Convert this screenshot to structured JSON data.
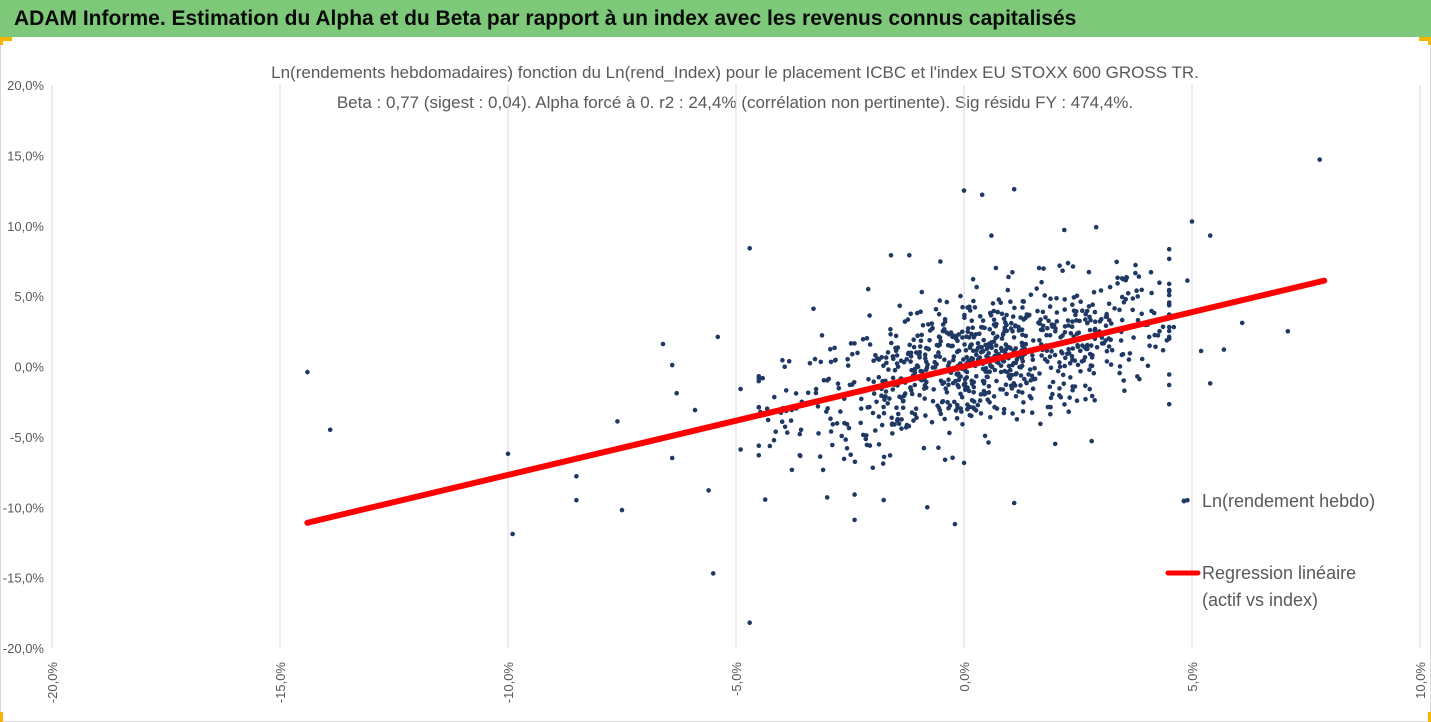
{
  "header": {
    "title": "ADAM Informe. Estimation du Alpha et du Beta par rapport à un index avec les revenus connus capitalisés"
  },
  "chart_data": {
    "type": "scatter",
    "title": "Ln(rendements hebdomadaires) fonction du Ln(rend_Index) pour le placement ICBC et l'index EU STOXX 600 GROSS TR.",
    "subtitle": "Beta : 0,77 (sigest : 0,04).  Alpha forcé à 0. r2 : 24,4% (corrélation non pertinente). Sig résidu FY : 474,4%.",
    "xlim": [
      -0.2,
      0.1
    ],
    "ylim": [
      -0.2,
      0.2
    ],
    "x_ticks": [
      "-20,0%",
      "-15,0%",
      "-10,0%",
      "-5,0%",
      "0,0%",
      "5,0%",
      "10,0%"
    ],
    "y_ticks": [
      "20,0%",
      "15,0%",
      "10,0%",
      "5,0%",
      "0,0%",
      "-5,0%",
      "-10,0%",
      "-15,0%",
      "-20,0%"
    ],
    "grid": "vertical",
    "legend_position": "right",
    "series": [
      {
        "name": "Ln(rendement hebdo)",
        "kind": "scatter",
        "color": "#1f3864",
        "cluster": {
          "count": 880,
          "x_center": 0.004,
          "x_spread": 0.021,
          "slope": 0.77,
          "resid_spread": 0.024
        },
        "points": [
          [
            -0.144,
            -0.004
          ],
          [
            -0.139,
            -0.045
          ],
          [
            -0.1,
            -0.062
          ],
          [
            -0.099,
            -0.119
          ],
          [
            -0.085,
            -0.078
          ],
          [
            -0.085,
            -0.095
          ],
          [
            -0.076,
            -0.039
          ],
          [
            -0.075,
            -0.102
          ],
          [
            -0.066,
            0.016
          ],
          [
            -0.064,
            0.001
          ],
          [
            -0.063,
            -0.019
          ],
          [
            -0.064,
            -0.065
          ],
          [
            -0.059,
            -0.031
          ],
          [
            -0.056,
            -0.088
          ],
          [
            -0.055,
            -0.147
          ],
          [
            -0.054,
            0.021
          ],
          [
            -0.049,
            -0.059
          ],
          [
            -0.049,
            -0.016
          ],
          [
            -0.047,
            0.084
          ],
          [
            -0.047,
            -0.182
          ],
          [
            -0.036,
            -0.048
          ],
          [
            -0.039,
            -0.017
          ],
          [
            -0.033,
            0.041
          ],
          [
            -0.03,
            -0.093
          ],
          [
            -0.024,
            -0.091
          ],
          [
            -0.024,
            -0.109
          ],
          [
            -0.021,
            0.055
          ],
          [
            -0.02,
            -0.072
          ],
          [
            -0.016,
            0.079
          ],
          [
            -0.012,
            0.079
          ],
          [
            -0.002,
            -0.112
          ],
          [
            0.0,
            0.125
          ],
          [
            0.002,
            0.062
          ],
          [
            0.006,
            0.093
          ],
          [
            0.004,
            0.122
          ],
          [
            0.007,
            0.07
          ],
          [
            0.011,
            0.126
          ],
          [
            0.011,
            -0.097
          ],
          [
            0.02,
            -0.055
          ],
          [
            0.022,
            0.097
          ],
          [
            0.029,
            0.099
          ],
          [
            0.036,
            0.052
          ],
          [
            0.041,
            0.067
          ],
          [
            0.042,
            0.014
          ],
          [
            0.046,
            0.028
          ],
          [
            0.049,
            0.061
          ],
          [
            0.049,
            -0.095
          ],
          [
            0.05,
            0.103
          ],
          [
            0.052,
            0.011
          ],
          [
            0.054,
            0.093
          ],
          [
            0.054,
            -0.012
          ],
          [
            0.057,
            0.012
          ],
          [
            0.061,
            0.031
          ],
          [
            0.071,
            0.025
          ],
          [
            0.078,
            0.147
          ],
          [
            0.028,
            -0.053
          ],
          [
            0.038,
            -0.007
          ]
        ]
      },
      {
        "name": "Regression linéaire (actif vs index)",
        "legend_lines": [
          "Regression linéaire",
          "(actif vs index)"
        ],
        "kind": "line",
        "color": "#ff0000",
        "x": [
          -0.144,
          0.079
        ],
        "y": [
          -0.111,
          0.061
        ]
      }
    ]
  }
}
